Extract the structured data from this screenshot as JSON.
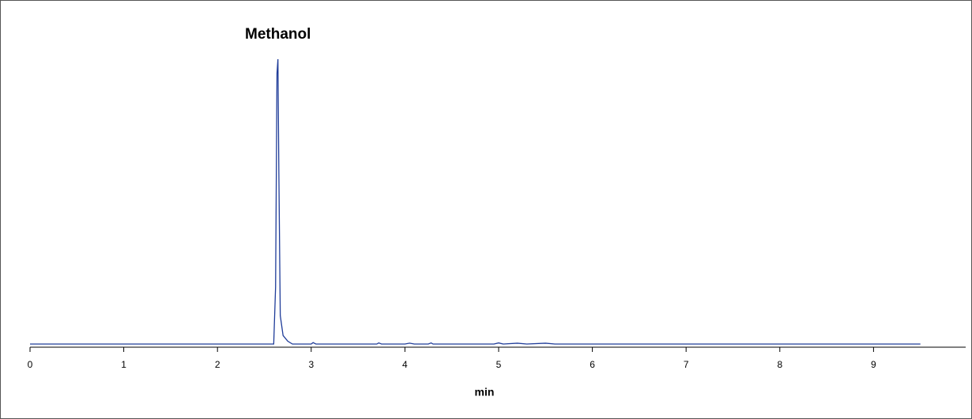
{
  "chart_data": {
    "type": "line",
    "peak_label": "Methanol",
    "x_label": "min",
    "xlim": [
      0,
      10
    ],
    "xticks": [
      0,
      1,
      2,
      3,
      4,
      5,
      6,
      7,
      8,
      9
    ],
    "ylim": [
      0,
      100
    ],
    "series": [
      {
        "color": "#1f3c99",
        "x": [
          0,
          2.6,
          2.62,
          2.635,
          2.645,
          2.655,
          2.67,
          2.7,
          2.75,
          2.8,
          3.0,
          3.02,
          3.05,
          3.7,
          3.72,
          3.75,
          4.0,
          4.05,
          4.1,
          4.25,
          4.28,
          4.3,
          4.95,
          5.0,
          5.05,
          5.2,
          5.3,
          5.5,
          5.6,
          5.65,
          9.5
        ],
        "values": [
          0,
          0,
          20,
          95,
          100,
          60,
          10,
          3,
          1,
          0,
          0,
          0.5,
          0,
          0,
          0.4,
          0,
          0,
          0.3,
          0,
          0,
          0.4,
          0,
          0,
          0.4,
          0,
          0.3,
          0,
          0.3,
          0,
          0,
          0
        ]
      }
    ]
  }
}
